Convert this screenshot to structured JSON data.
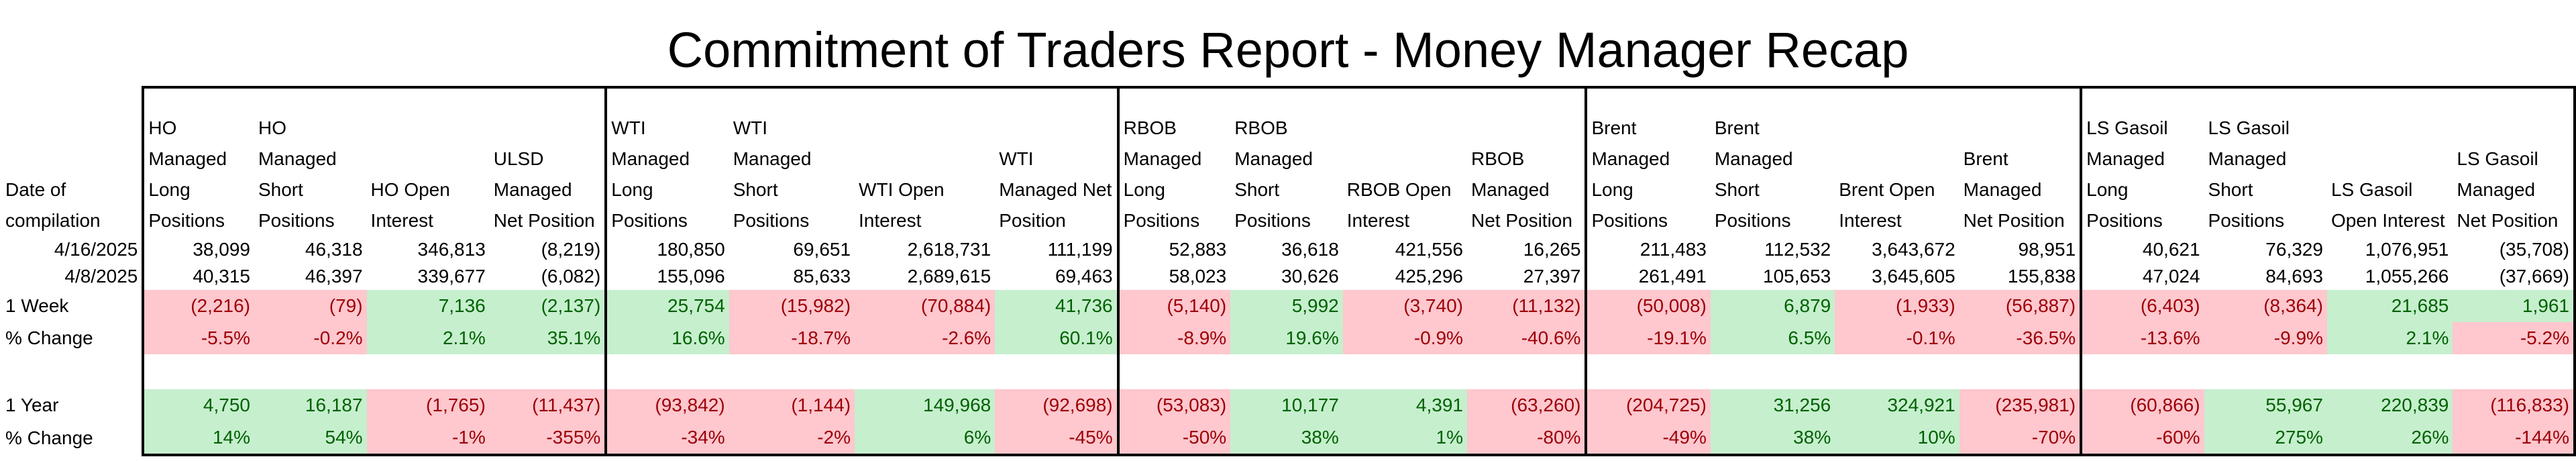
{
  "title": "Commitment of Traders Report - Money Manager Recap",
  "colors": {
    "positive_fill": "#c6efce",
    "positive_text": "#006100",
    "negative_fill": "#ffc7ce",
    "negative_text": "#9c0006"
  },
  "row_labels": {
    "date_header": "Date of compilation",
    "week_1": "1 Week",
    "week_2": "% Change",
    "year_1": "1 Year",
    "year_2": "% Change"
  },
  "groups": [
    {
      "columns": [
        {
          "header": "HO Managed Long Positions",
          "d1": "38,099",
          "d2": "40,315",
          "w": "(2,216)",
          "ws": "neg",
          "wp": "-5.5%",
          "y": "4,750",
          "ys": "pos",
          "yp": "14%"
        },
        {
          "header": "HO Managed Short Positions",
          "d1": "46,318",
          "d2": "46,397",
          "w": "(79)",
          "ws": "neg",
          "wp": "-0.2%",
          "y": "16,187",
          "ys": "pos",
          "yp": "54%"
        },
        {
          "header": "HO Open Interest",
          "d1": "346,813",
          "d2": "339,677",
          "w": "7,136",
          "ws": "pos",
          "wp": "2.1%",
          "y": "(1,765)",
          "ys": "neg",
          "yp": "-1%"
        },
        {
          "header": "ULSD Managed Net Position",
          "d1": "(8,219)",
          "d2": "(6,082)",
          "w": "(2,137)",
          "ws": "pos",
          "wp": "35.1%",
          "y": "(11,437)",
          "ys": "neg",
          "yp": "-355%"
        }
      ]
    },
    {
      "columns": [
        {
          "header": "WTI Managed Long Positions",
          "d1": "180,850",
          "d2": "155,096",
          "w": "25,754",
          "ws": "pos",
          "wp": "16.6%",
          "y": "(93,842)",
          "ys": "neg",
          "yp": "-34%"
        },
        {
          "header": "WTI Managed Short Positions",
          "d1": "69,651",
          "d2": "85,633",
          "w": "(15,982)",
          "ws": "neg",
          "wp": "-18.7%",
          "y": "(1,144)",
          "ys": "neg",
          "yp": "-2%"
        },
        {
          "header": "WTI Open Interest",
          "d1": "2,618,731",
          "d2": "2,689,615",
          "w": "(70,884)",
          "ws": "neg",
          "wp": "-2.6%",
          "y": "149,968",
          "ys": "pos",
          "yp": "6%"
        },
        {
          "header": "WTI Managed Net Position",
          "d1": "111,199",
          "d2": "69,463",
          "w": "41,736",
          "ws": "pos",
          "wp": "60.1%",
          "y": "(92,698)",
          "ys": "neg",
          "yp": "-45%"
        }
      ]
    },
    {
      "columns": [
        {
          "header": "RBOB Managed Long Positions",
          "d1": "52,883",
          "d2": "58,023",
          "w": "(5,140)",
          "ws": "neg",
          "wp": "-8.9%",
          "y": "(53,083)",
          "ys": "neg",
          "yp": "-50%"
        },
        {
          "header": "RBOB Managed Short Positions",
          "d1": "36,618",
          "d2": "30,626",
          "w": "5,992",
          "ws": "pos",
          "wp": "19.6%",
          "y": "10,177",
          "ys": "pos",
          "yp": "38%"
        },
        {
          "header": "RBOB Open Interest",
          "d1": "421,556",
          "d2": "425,296",
          "w": "(3,740)",
          "ws": "neg",
          "wp": "-0.9%",
          "y": "4,391",
          "ys": "pos",
          "yp": "1%"
        },
        {
          "header": "RBOB Managed Net Position",
          "d1": "16,265",
          "d2": "27,397",
          "w": "(11,132)",
          "ws": "neg",
          "wp": "-40.6%",
          "y": "(63,260)",
          "ys": "neg",
          "yp": "-80%"
        }
      ]
    },
    {
      "columns": [
        {
          "header": "Brent Managed Long Positions",
          "d1": "211,483",
          "d2": "261,491",
          "w": "(50,008)",
          "ws": "neg",
          "wp": "-19.1%",
          "y": "(204,725)",
          "ys": "neg",
          "yp": "-49%"
        },
        {
          "header": "Brent Managed Short Positions",
          "d1": "112,532",
          "d2": "105,653",
          "w": "6,879",
          "ws": "pos",
          "wp": "6.5%",
          "y": "31,256",
          "ys": "pos",
          "yp": "38%"
        },
        {
          "header": "Brent Open Interest",
          "d1": "3,643,672",
          "d2": "3,645,605",
          "w": "(1,933)",
          "ws": "neg",
          "wp": "-0.1%",
          "y": "324,921",
          "ys": "pos",
          "yp": "10%"
        },
        {
          "header": "Brent Managed Net Position",
          "d1": "98,951",
          "d2": "155,838",
          "w": "(56,887)",
          "ws": "neg",
          "wp": "-36.5%",
          "y": "(235,981)",
          "ys": "neg",
          "yp": "-70%"
        }
      ]
    },
    {
      "columns": [
        {
          "header": "LS Gasoil Managed Long Positions",
          "d1": "40,621",
          "d2": "47,024",
          "w": "(6,403)",
          "ws": "neg",
          "wp": "-13.6%",
          "y": "(60,866)",
          "ys": "neg",
          "yp": "-60%"
        },
        {
          "header": "LS Gasoil Managed Short Positions",
          "d1": "76,329",
          "d2": "84,693",
          "w": "(8,364)",
          "ws": "neg",
          "wp": "-9.9%",
          "y": "55,967",
          "ys": "pos",
          "yp": "275%"
        },
        {
          "header": "LS Gasoil Open Interest",
          "d1": "1,076,951",
          "d2": "1,055,266",
          "w": "21,685",
          "ws": "pos",
          "wp": "2.1%",
          "y": "220,839",
          "ys": "pos",
          "yp": "26%"
        },
        {
          "header": "LS Gasoil Managed Net Position",
          "d1": "(35,708)",
          "d2": "(37,669)",
          "w": "1,961",
          "ws": "pos",
          "wp": "-5.2%",
          "y": "(116,833)",
          "ys": "neg",
          "yp": "-144%"
        }
      ]
    }
  ],
  "dates": [
    "4/16/2025",
    "4/8/2025"
  ]
}
